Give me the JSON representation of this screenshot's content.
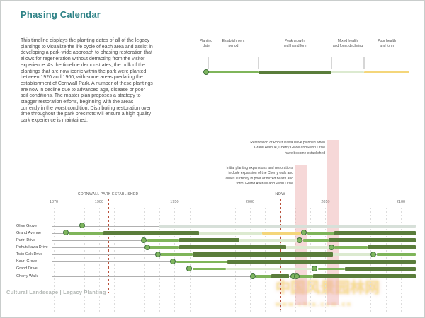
{
  "title": "Phasing Calendar",
  "intro": "This timeline displays the planting dates of all of the legacy plantings to visualize the life cycle of each area and assist in developing a park-wide approach to phasing restoration that allows for regeneration without detracting from the visitor experience. As the timeline demonstrates, the bulk of the plantings that are now iconic within the park were planted between 1920 and 1960, with some areas predating the establishment of Cornwall Park. A number of these plantings are now in decline due to advanced age, disease or poor soil conditions. The master plan proposes a strategy to stagger restoration efforts, beginning with the areas currently in the worst condition. Distributing restoration over time throughout the park precincts will ensure a high quality park experience is maintained.",
  "footer": "Cultural Landscape | Legacy Planting",
  "watermark": {
    "text": "中国风景园林网",
    "subtext": "www.chla.com.cn"
  },
  "colors": {
    "teal": "#2c8185",
    "establishment": "#7fb55a",
    "peak": "#5a7d3b",
    "mixed": "#dcead0",
    "poor": "#f4d67a",
    "gray": "#d7e0d9",
    "dot_fill": "#7eb55e",
    "dot_ring": "#3e6f3c",
    "band": "#eaa9a9",
    "red_line": "#b8503a"
  },
  "legend": {
    "items": [
      {
        "id": "planting",
        "label": "Planting\ndate"
      },
      {
        "id": "establishment",
        "label": "Establishment\nperiod"
      },
      {
        "id": "peak",
        "label": "Peak growth,\nhealth and form"
      },
      {
        "id": "mixed",
        "label": "Mixed health\nand form, declining"
      },
      {
        "id": "poor",
        "label": "Poor health\nand form"
      }
    ]
  },
  "annotations": [
    {
      "text": "Restoration of Pohutukawa Drive planned when\nGrand Avenue, Cherry Glade and Puriri Drive\nhave become established"
    },
    {
      "text": "Initial planting expansions and restorations\ninclude expansion of the Cherry walk and\nallees currently in poor or mixed health and\nform: Grand Avenue and Puriri Drive"
    }
  ],
  "chart_data": {
    "type": "timeline",
    "x_axis": {
      "range": [
        1870,
        2110
      ],
      "ticks": [
        1870,
        1900,
        1950,
        2000,
        2050,
        2100
      ],
      "gridline_step": 10,
      "now": {
        "label": "NOW",
        "year": 2020
      },
      "marker": {
        "label": "CORNWALL PARK ESTABLISHED",
        "year": 1906
      }
    },
    "restoration_windows": [
      {
        "start": 2030,
        "end": 2038
      },
      {
        "start": 2051,
        "end": 2059
      }
    ],
    "rows": [
      {
        "label": "Olive Grove",
        "planted": [
          1889
        ],
        "segments": [
          {
            "type": "gray",
            "start": 1940,
            "end": 2110
          }
        ]
      },
      {
        "label": "Grand Avenue",
        "planted": [
          1878,
          2036
        ],
        "segments": [
          {
            "type": "establishment",
            "start": 1880,
            "end": 1903
          },
          {
            "type": "peak",
            "start": 1903,
            "end": 1966
          },
          {
            "type": "mixed",
            "start": 1966,
            "end": 2008
          },
          {
            "type": "poor",
            "start": 2008,
            "end": 2034
          },
          {
            "type": "establishment",
            "start": 2038,
            "end": 2056
          },
          {
            "type": "peak",
            "start": 2056,
            "end": 2110
          }
        ]
      },
      {
        "label": "Puriri Drive",
        "planted": [
          1930,
          2033
        ],
        "segments": [
          {
            "type": "establishment",
            "start": 1932,
            "end": 1953
          },
          {
            "type": "peak",
            "start": 1953,
            "end": 1993
          },
          {
            "type": "mixed",
            "start": 1993,
            "end": 2031
          },
          {
            "type": "establishment",
            "start": 2035,
            "end": 2052
          },
          {
            "type": "peak",
            "start": 2052,
            "end": 2110
          }
        ]
      },
      {
        "label": "Pohutukawa Drive",
        "planted": [
          1932,
          2054
        ],
        "segments": [
          {
            "type": "establishment",
            "start": 1933,
            "end": 1953
          },
          {
            "type": "peak",
            "start": 1953,
            "end": 2024
          },
          {
            "type": "mixed",
            "start": 2024,
            "end": 2052
          },
          {
            "type": "establishment",
            "start": 2056,
            "end": 2078
          },
          {
            "type": "peak",
            "start": 2078,
            "end": 2110
          }
        ]
      },
      {
        "label": "Twin Oak Drive",
        "planted": [
          1939,
          2082
        ],
        "segments": [
          {
            "type": "establishment",
            "start": 1941,
            "end": 1962
          },
          {
            "type": "peak",
            "start": 1962,
            "end": 2055
          },
          {
            "type": "mixed",
            "start": 2055,
            "end": 2080
          },
          {
            "type": "establishment",
            "start": 2084,
            "end": 2110
          }
        ]
      },
      {
        "label": "Kauri Grove",
        "planted": [
          1949
        ],
        "segments": [
          {
            "type": "establishment",
            "start": 1951,
            "end": 1985
          },
          {
            "type": "peak",
            "start": 1985,
            "end": 2110
          }
        ]
      },
      {
        "label": "Grand Drive",
        "planted": [
          1960,
          2043
        ],
        "segments": [
          {
            "type": "establishment",
            "start": 1962,
            "end": 1984
          },
          {
            "type": "mixed",
            "start": 1984,
            "end": 2042
          },
          {
            "type": "establishment",
            "start": 2045,
            "end": 2063
          },
          {
            "type": "peak",
            "start": 2063,
            "end": 2110
          }
        ]
      },
      {
        "label": "Cherry Walk",
        "planted": [
          2002,
          2029,
          2031
        ],
        "segments": [
          {
            "type": "establishment",
            "start": 2004,
            "end": 2014
          },
          {
            "type": "peak",
            "start": 2014,
            "end": 2026
          },
          {
            "type": "establishment",
            "start": 2032,
            "end": 2042
          },
          {
            "type": "peak",
            "start": 2042,
            "end": 2110
          }
        ]
      }
    ]
  }
}
